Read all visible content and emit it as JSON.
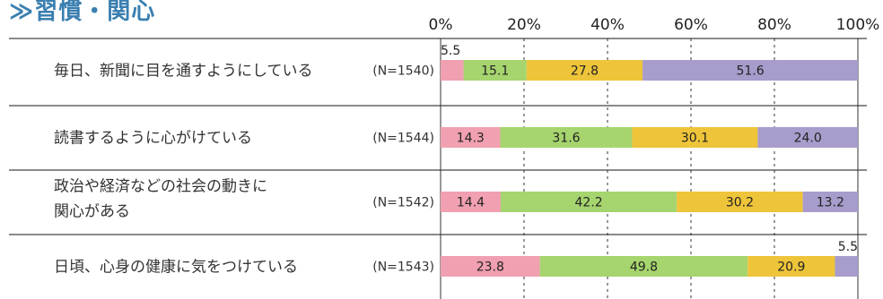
{
  "title": "≫習慣・関心",
  "chart_data": {
    "type": "bar",
    "orientation": "horizontal",
    "stacked": true,
    "xlim": [
      0,
      100
    ],
    "x_ticks": [
      "0%",
      "20%",
      "40%",
      "60%",
      "80%",
      "100%"
    ],
    "grid": true,
    "series_colors": [
      "#f0a0b0",
      "#a6d46e",
      "#eec43a",
      "#a89ccc"
    ],
    "rows": [
      {
        "label": [
          "毎日、新聞に目を通すようにしている"
        ],
        "n": "(N=1540)",
        "values": [
          5.5,
          15.1,
          27.8,
          51.6
        ],
        "labels": [
          "5.5",
          "15.1",
          "27.8",
          "51.6"
        ]
      },
      {
        "label": [
          "読書するように心がけている"
        ],
        "n": "(N=1544)",
        "values": [
          14.3,
          31.6,
          30.1,
          24.0
        ],
        "labels": [
          "14.3",
          "31.6",
          "30.1",
          "24.0"
        ]
      },
      {
        "label": [
          "政治や経済などの社会の動きに",
          "関心がある"
        ],
        "n": "(N=1542)",
        "values": [
          14.4,
          42.2,
          30.2,
          13.2
        ],
        "labels": [
          "14.4",
          "42.2",
          "30.2",
          "13.2"
        ]
      },
      {
        "label": [
          "日頃、心身の健康に気をつけている"
        ],
        "n": "(N=1543)",
        "values": [
          23.8,
          49.8,
          20.9,
          5.5
        ],
        "labels": [
          "23.8",
          "49.8",
          "20.9",
          "5.5"
        ]
      }
    ]
  }
}
